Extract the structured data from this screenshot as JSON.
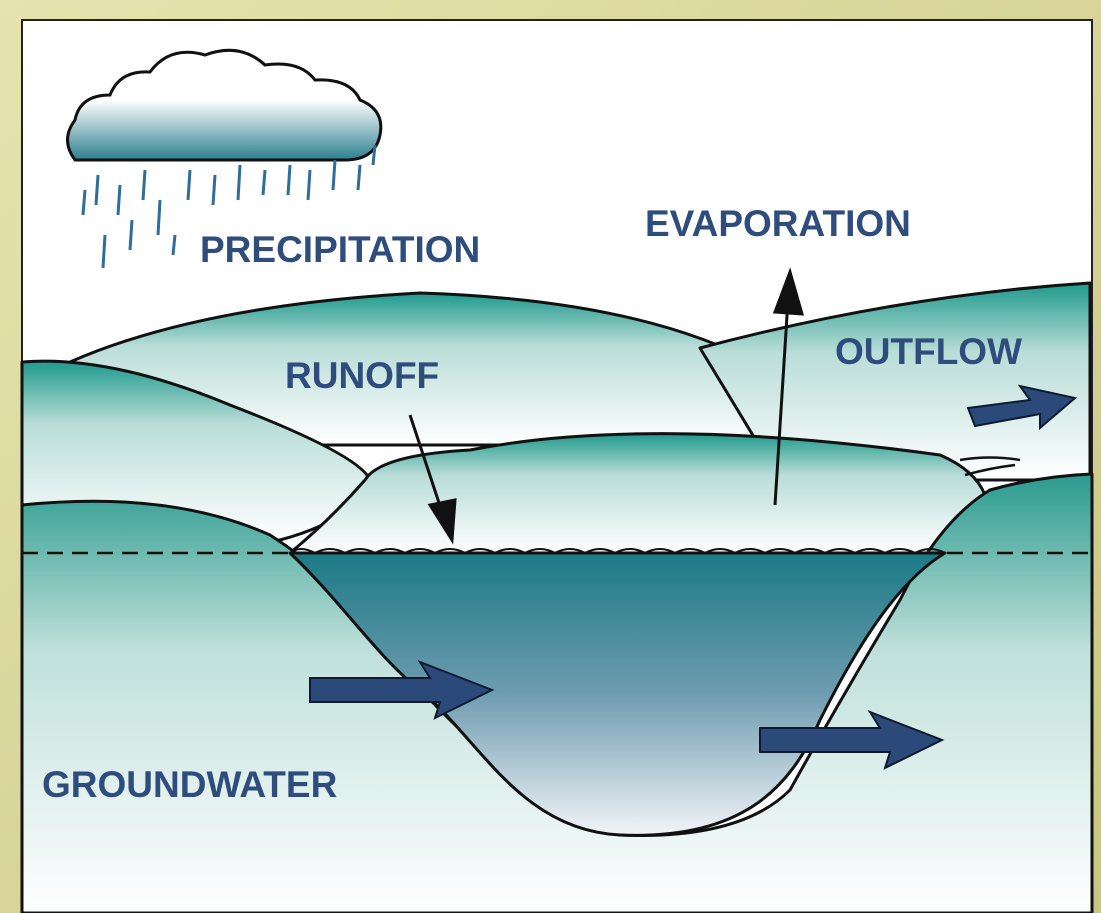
{
  "labels": {
    "precipitation": "PRECIPITATION",
    "evaporation": "EVAPORATION",
    "runoff": "RUNOFF",
    "outflow": "OUTFLOW",
    "groundwater": "GROUNDWATER"
  }
}
